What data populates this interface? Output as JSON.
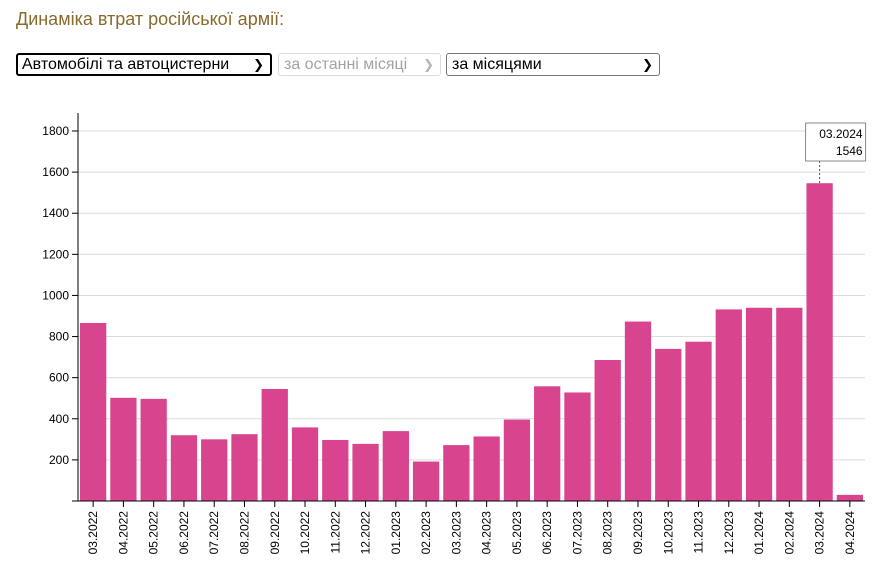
{
  "header": {
    "title": "Динаміка втрат російської армії:"
  },
  "controls": {
    "category": {
      "value": "Автомобілі та автоцистерни"
    },
    "period": {
      "value": "за останні місяці"
    },
    "grouping": {
      "value": "за місяцями"
    }
  },
  "tooltip": {
    "label": "03.2024",
    "value": "1546"
  },
  "chart_data": {
    "type": "bar",
    "categories": [
      "03.2022",
      "04.2022",
      "05.2022",
      "06.2022",
      "07.2022",
      "08.2022",
      "09.2022",
      "10.2022",
      "11.2022",
      "12.2022",
      "01.2023",
      "02.2023",
      "03.2023",
      "04.2023",
      "05.2023",
      "06.2023",
      "07.2023",
      "08.2023",
      "09.2023",
      "10.2023",
      "11.2023",
      "12.2023",
      "01.2024",
      "02.2024",
      "03.2024",
      "04.2024"
    ],
    "values": [
      866,
      502,
      497,
      320,
      300,
      325,
      545,
      358,
      297,
      278,
      340,
      192,
      272,
      314,
      396,
      558,
      528,
      686,
      873,
      740,
      775,
      932,
      940,
      940,
      1546,
      30
    ],
    "yticks": [
      200,
      400,
      600,
      800,
      1000,
      1200,
      1400,
      1600,
      1800
    ],
    "ylim": [
      0,
      1900
    ],
    "grid": true,
    "color": "#d9448f",
    "title": "",
    "xlabel": "",
    "ylabel": ""
  }
}
